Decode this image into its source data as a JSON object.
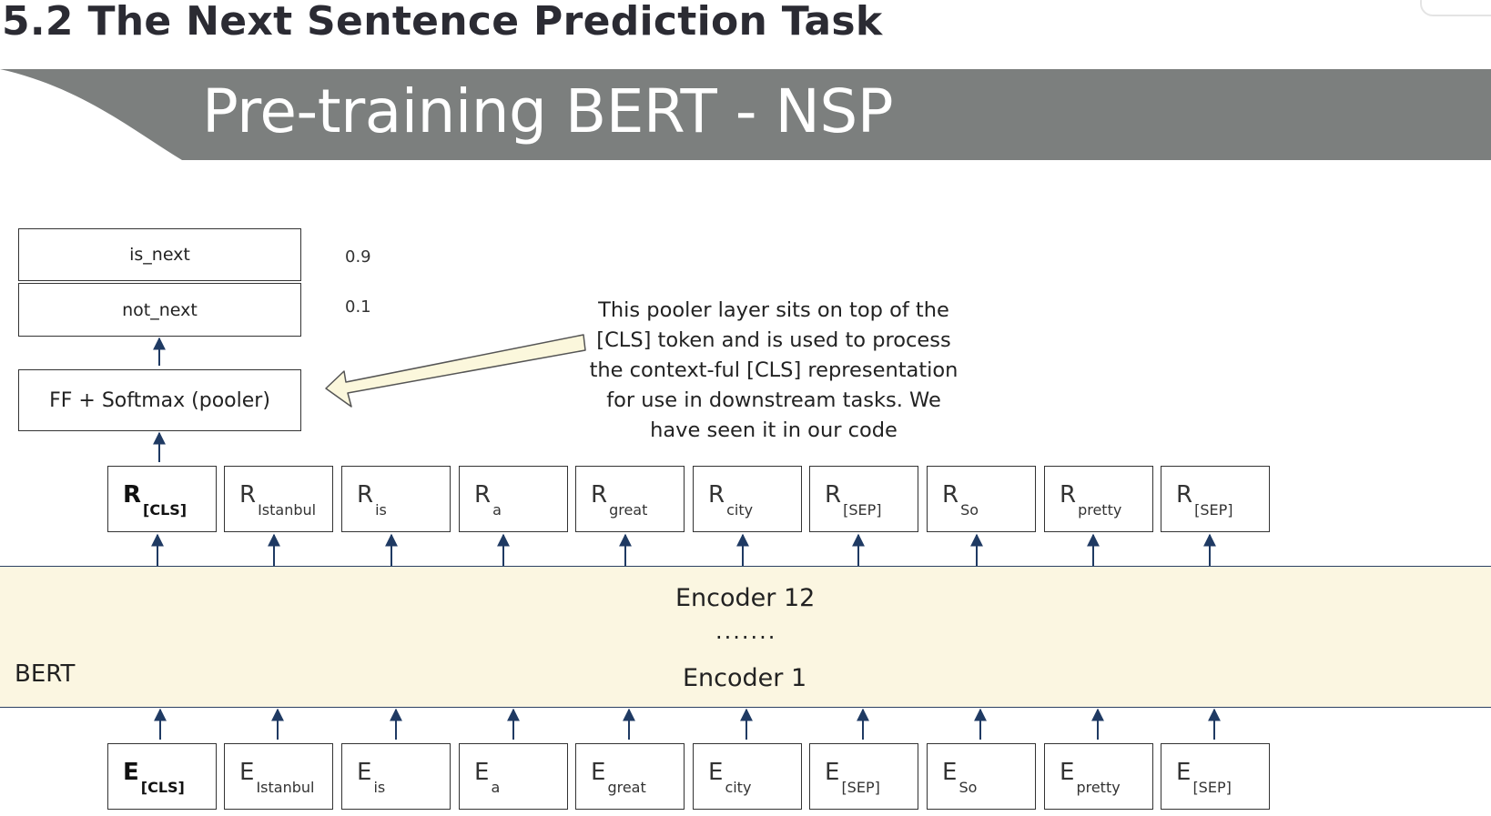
{
  "section_title": "5.2 The Next Sentence Prediction Task",
  "banner_title": "Pre-training BERT - NSP",
  "outputs": [
    {
      "label": "is_next",
      "prob": "0.9"
    },
    {
      "label": "not_next",
      "prob": "0.1"
    }
  ],
  "pooler_label": "FF + Softmax (pooler)",
  "callout_lines": [
    "This pooler layer sits on top of the",
    "[CLS] token and is used to process",
    "the context-ful [CLS] representation",
    "for use in downstream tasks. We",
    "have seen it in our code"
  ],
  "representations": [
    {
      "letter": "R",
      "sub": "[CLS]"
    },
    {
      "letter": "R",
      "sub": "Istanbul"
    },
    {
      "letter": "R",
      "sub": "is"
    },
    {
      "letter": "R",
      "sub": "a"
    },
    {
      "letter": "R",
      "sub": "great"
    },
    {
      "letter": "R",
      "sub": "city"
    },
    {
      "letter": "R",
      "sub": "[SEP]"
    },
    {
      "letter": "R",
      "sub": "So"
    },
    {
      "letter": "R",
      "sub": "pretty"
    },
    {
      "letter": "R",
      "sub": "[SEP]"
    }
  ],
  "embeddings": [
    {
      "letter": "E",
      "sub": "[CLS]"
    },
    {
      "letter": "E",
      "sub": "Istanbul"
    },
    {
      "letter": "E",
      "sub": "is"
    },
    {
      "letter": "E",
      "sub": "a"
    },
    {
      "letter": "E",
      "sub": "great"
    },
    {
      "letter": "E",
      "sub": "city"
    },
    {
      "letter": "E",
      "sub": "[SEP]"
    },
    {
      "letter": "E",
      "sub": "So"
    },
    {
      "letter": "E",
      "sub": "pretty"
    },
    {
      "letter": "E",
      "sub": "[SEP]"
    }
  ],
  "encoder_top": "Encoder 12",
  "encoder_dots": ".......",
  "encoder_bottom": "Encoder 1",
  "bert_label": "BERT",
  "colors": {
    "banner": "#7c7f7e",
    "bert_band": "#fbf6e1",
    "arrow": "#1f3a63",
    "callout_arrow_fill": "#fbf7dc"
  }
}
